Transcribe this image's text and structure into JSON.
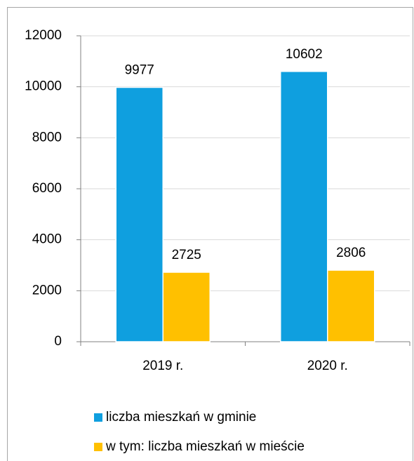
{
  "chart_data": {
    "type": "bar",
    "categories": [
      "2019 r.",
      "2020 r."
    ],
    "series": [
      {
        "name": "liczba mieszkań w gminie",
        "color": "#0f9fdf",
        "values": [
          9977,
          10602
        ]
      },
      {
        "name": "w tym: liczba mieszkań w mieście",
        "color": "#ffc000",
        "values": [
          2725,
          2806
        ]
      }
    ],
    "ylim": [
      0,
      12000
    ],
    "yticks": [
      0,
      2000,
      4000,
      6000,
      8000,
      10000,
      12000
    ],
    "grid": true,
    "legend": "bottom"
  }
}
